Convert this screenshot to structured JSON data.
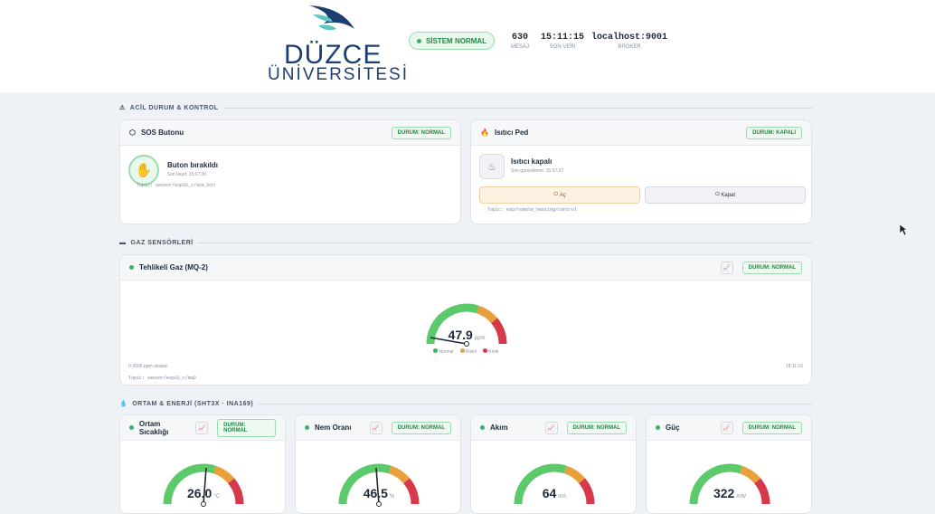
{
  "header": {
    "logo_top": "DÜZCE",
    "logo_bottom": "ÜNİVERSİTESİ",
    "status": "SİSTEM NORMAL",
    "stats": [
      {
        "value": "630",
        "label": "MESAJ"
      },
      {
        "value": "15:11:15",
        "label": "SON VERİ"
      },
      {
        "value": "localhost:9001",
        "label": "BROKER"
      }
    ]
  },
  "sections": [
    {
      "title": "ACİL DURUM & KONTROL"
    },
    {
      "title": "GAZ SENSÖRLERİ"
    },
    {
      "title": "ORTAM & ENERJİ (SHT3X · INA169)"
    }
  ],
  "sos": {
    "title": "SOS Butonu",
    "status": "DURUM: NORMAL",
    "state": "Buton bırakıldı",
    "time": "Son kayıt: 15:07:39",
    "topic": "Topic: sensor/esp32_c/sos_btn"
  },
  "heater": {
    "title": "Isıtıcı Ped",
    "status": "DURUM: KAPALI",
    "state": "Isıtıcı kapalı",
    "time": "Son güncelleme: 15:07:37",
    "on": "Aç",
    "off": "Kapat",
    "topic": "Topic: esp/remote_heating/control"
  },
  "gas": {
    "title": "Tehlikeli Gaz (MQ-2)",
    "status": "DURUM: NORMAL",
    "value": "47.9",
    "unit": "ppm",
    "legend": [
      "Normal",
      "Riskli",
      "Kritik"
    ],
    "scale": "0-2000 ppm skalası",
    "time": "15:11:15",
    "topic": "Topic: sensor/esp32_c/mq2"
  },
  "env": [
    {
      "title": "Ortam Sıcaklığı",
      "status": "DURUM: NORMAL",
      "value": "26.0",
      "unit": "°C"
    },
    {
      "title": "Nem Oranı",
      "status": "DURUM: NORMAL",
      "value": "46.5",
      "unit": "%"
    },
    {
      "title": "Akım",
      "status": "DURUM: NORMAL",
      "value": "64",
      "unit": "mA"
    },
    {
      "title": "Güç",
      "status": "DURUM: NORMAL",
      "value": "322",
      "unit": "mW"
    }
  ]
}
